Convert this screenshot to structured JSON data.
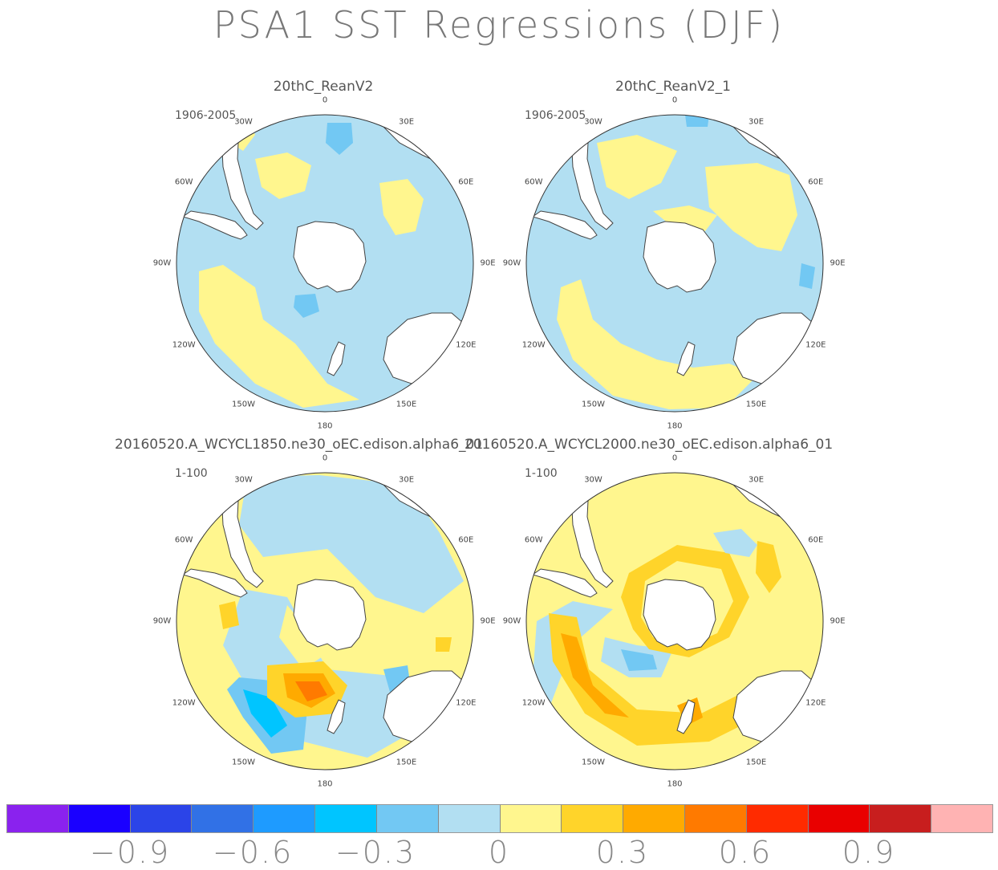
{
  "title": "PSA1 SST Regressions (DJF)",
  "panels": [
    {
      "title": "20thC_ReanV2",
      "period": "1906-2005"
    },
    {
      "title": "20thC_ReanV2_1",
      "period": "1906-2005"
    },
    {
      "title": "20160520.A_WCYCL1850.ne30_oEC.edison.alpha6_01",
      "period": "1-100"
    },
    {
      "title": "20160520.A_WCYCL2000.ne30_oEC.edison.alpha6_01",
      "period": "1-100"
    }
  ],
  "longitude_labels": {
    "lon_0": "0",
    "lon_30e": "30E",
    "lon_60e": "60E",
    "lon_90e": "90E",
    "lon_120e": "120E",
    "lon_150e": "150E",
    "lon_180": "180",
    "lon_150w": "150W",
    "lon_120w": "120W",
    "lon_90w": "90W",
    "lon_60w": "60W",
    "lon_30w": "30W"
  },
  "colorbar": {
    "colors": [
      "#8a22ee",
      "#1a00ff",
      "#2b44e8",
      "#3171e6",
      "#1e9bff",
      "#00c5ff",
      "#72c8f3",
      "#b2dff2",
      "#fff68e",
      "#ffd42a",
      "#ffaa00",
      "#ff7a00",
      "#ff2b00",
      "#e90000",
      "#c81e1e",
      "#ffb3b3"
    ],
    "tick_labels": [
      "−0.9",
      "−0.6",
      "−0.3",
      "0",
      "0.3",
      "0.6",
      "0.9"
    ]
  }
}
